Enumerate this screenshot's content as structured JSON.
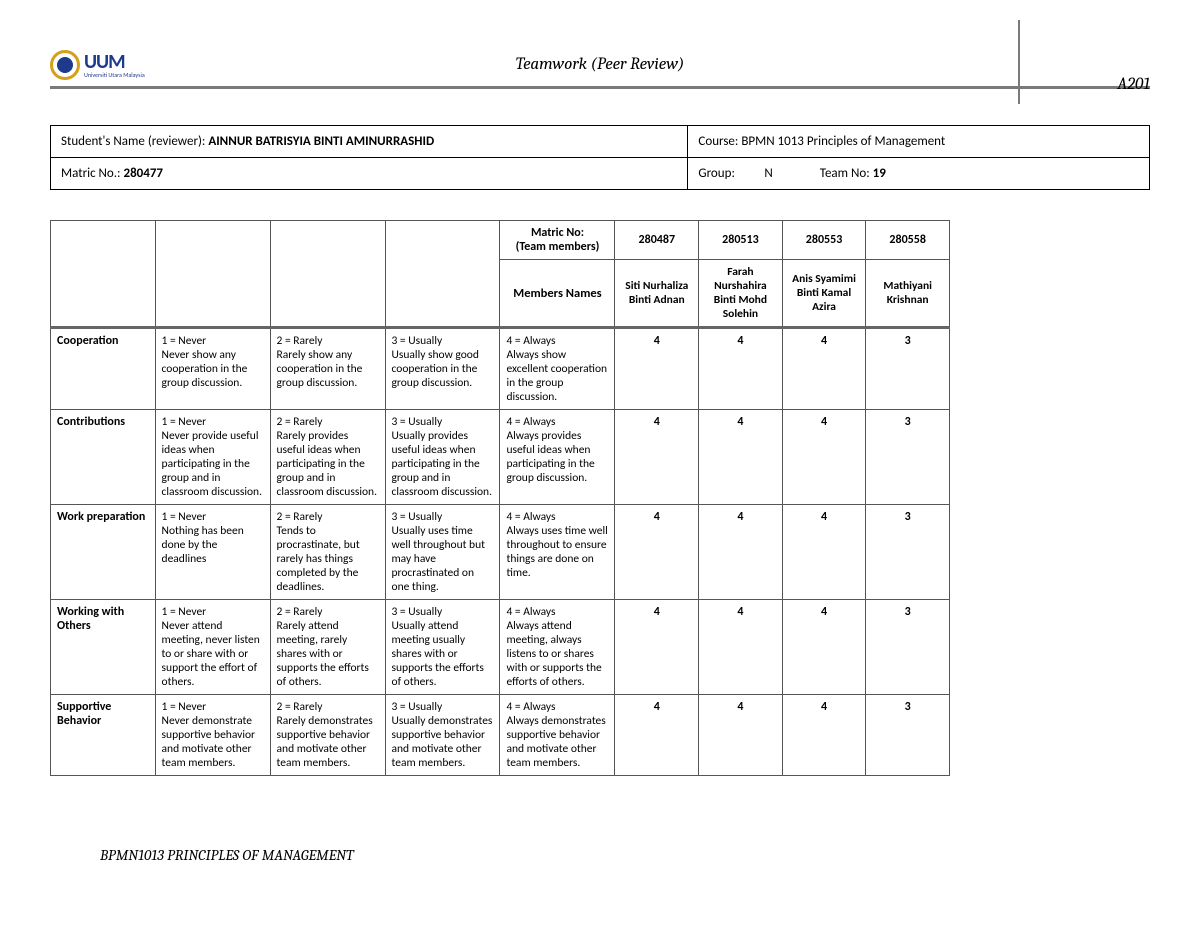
{
  "header": {
    "logo_main": "UUM",
    "logo_sub": "Universiti Utara Malaysia",
    "title": "Teamwork (Peer Review)",
    "code": "A201"
  },
  "info": {
    "student_label": "Student's Name (reviewer): ",
    "student_name": "AINNUR BATRISYIA BINTI AMINURRASHID",
    "course_label": "Course: ",
    "course_value": "BPMN 1013  Principles of Management",
    "matric_label": "Matric No.: ",
    "matric_value": "280477",
    "group_label": "Group:",
    "group_value": "N",
    "team_label": "Team No: ",
    "team_value": "19"
  },
  "rubric_headers": {
    "matric_label": "Matric No:\n(Team members)",
    "members_label": "Members Names",
    "matric_nos": [
      "280487",
      "280513",
      "280553",
      "280558"
    ],
    "member_names": [
      "Siti Nurhaliza Binti Adnan",
      "Farah Nurshahira Binti Mohd Solehin",
      "Anis Syamimi Binti Kamal Azira",
      "Mathiyani Krishnan"
    ]
  },
  "criteria": [
    {
      "name": "Cooperation",
      "scale": [
        "1 = Never\nNever show any cooperation in the group discussion.",
        "2 = Rarely\nRarely show any cooperation in the group discussion.",
        "3 = Usually\nUsually show good cooperation in the group discussion.",
        "4 = Always\nAlways show excellent cooperation in the group discussion."
      ],
      "scores": [
        "4",
        "4",
        "4",
        "3"
      ]
    },
    {
      "name": "Contributions",
      "scale": [
        "1 = Never\nNever provide useful ideas when participating in the group and in classroom discussion.",
        "2 = Rarely\nRarely provides useful ideas when participating in the group and in classroom discussion.",
        "3 = Usually\nUsually provides useful ideas when participating in the group and in classroom discussion.",
        "4 = Always\nAlways provides useful ideas when participating in the group discussion."
      ],
      "scores": [
        "4",
        "4",
        "4",
        "3"
      ]
    },
    {
      "name": "Work preparation",
      "scale": [
        "1 = Never\nNothing has been done by the deadlines",
        "2 = Rarely\nTends to procrastinate, but rarely has things completed by the deadlines.",
        "3 = Usually\nUsually uses time well throughout but may have procrastinated on one thing.",
        "4 = Always\nAlways uses time well throughout to ensure things are done on time."
      ],
      "scores": [
        "4",
        "4",
        "4",
        "3"
      ]
    },
    {
      "name": "Working with Others",
      "scale": [
        "1 = Never\nNever attend meeting, never listen to or share with or support the effort of others.",
        "2 = Rarely\nRarely attend meeting, rarely shares with or supports the efforts of others.",
        "3 = Usually\nUsually attend meeting usually shares with or supports the efforts of others.",
        "4 = Always\nAlways attend meeting, always listens to or shares with or supports the efforts of others."
      ],
      "scores": [
        "4",
        "4",
        "4",
        "3"
      ]
    },
    {
      "name": "Supportive Behavior",
      "scale": [
        "1 = Never\nNever demonstrate supportive behavior and motivate other team members.",
        "2 = Rarely\nRarely demonstrates supportive behavior and motivate other team members.",
        "3 = Usually\nUsually demonstrates supportive behavior and motivate other team members.",
        "4 = Always\nAlways demonstrates supportive behavior and motivate other team members."
      ],
      "scores": [
        "4",
        "4",
        "4",
        "3"
      ]
    }
  ],
  "footer": "BPMN1013  PRINCIPLES OF MANAGEMENT"
}
